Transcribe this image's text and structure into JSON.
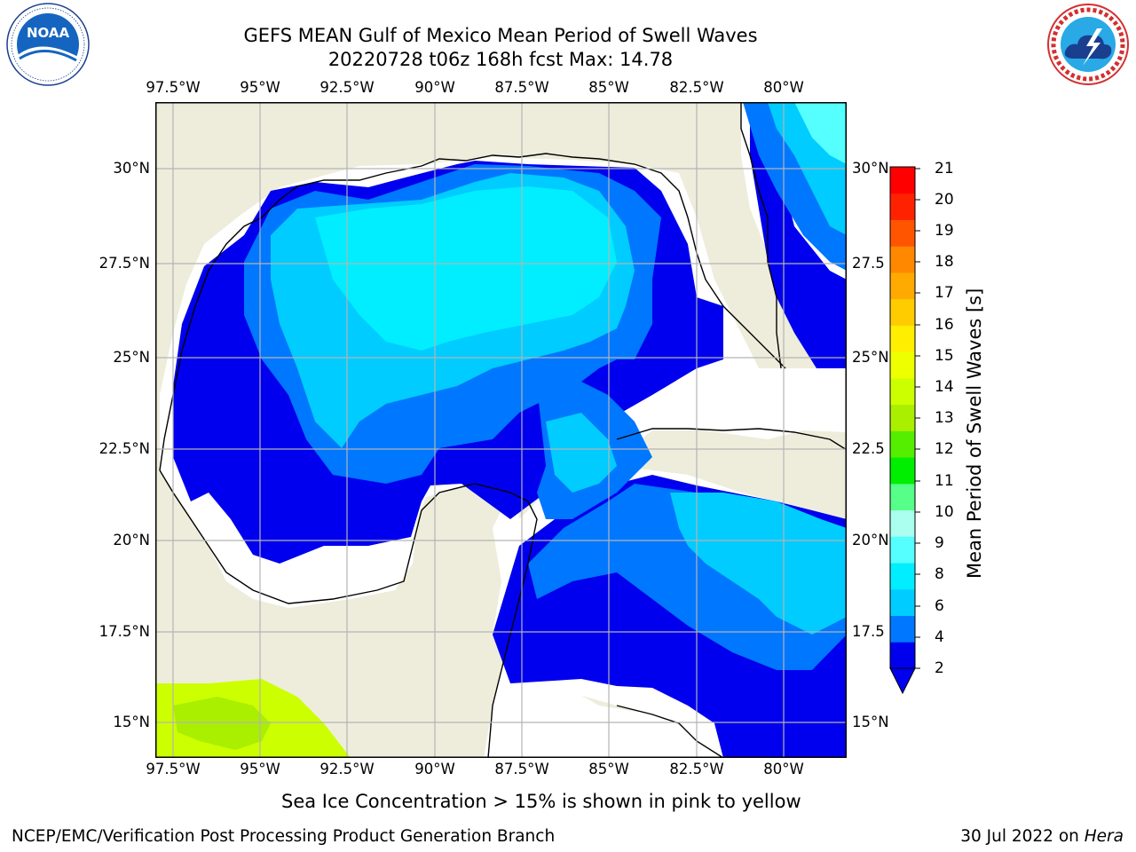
{
  "header": {
    "title_line1": "GEFS MEAN Gulf of Mexico Mean Period of Swell Waves",
    "title_line2": "20220728 t06z 168h fcst   Max: 14.78"
  },
  "logos": {
    "left": {
      "name": "NOAA",
      "ring_text": "NATIONAL OCEANIC AND ATMOSPHERIC ADMINISTRATION · U.S. DEPARTMENT OF COMMERCE"
    },
    "right": {
      "ring_text_top": "NATIONAL WEATHER SERVICE"
    }
  },
  "map": {
    "lon_ticks": [
      "97.5°W",
      "95°W",
      "92.5°W",
      "90°W",
      "87.5°W",
      "85°W",
      "82.5°W",
      "80°W"
    ],
    "lat_ticks_left": [
      "30°N",
      "27.5°N",
      "25°N",
      "22.5°N",
      "20°N",
      "17.5°N",
      "15°N"
    ],
    "lat_ticks_right": [
      "30°N",
      "27.5",
      "25°N",
      "22.5",
      "20°N",
      "17.5",
      "15°N"
    ],
    "colors": {
      "land": "#eeeddc",
      "ocean_missing": "#ffffff",
      "grid": "#b4b4b4"
    }
  },
  "colorbar": {
    "title": "Mean Period of Swell Waves [s]",
    "labels": [
      "2",
      "4",
      "6",
      "8",
      "9",
      "10",
      "11",
      "12",
      "13",
      "14",
      "15",
      "16",
      "17",
      "18",
      "19",
      "20",
      "21"
    ],
    "colors": [
      "#0000ee",
      "#0077ff",
      "#00ccff",
      "#00eeff",
      "#55ffff",
      "#aaffee",
      "#55ff88",
      "#00ee00",
      "#55ee00",
      "#aaee00",
      "#ccff00",
      "#eeff00",
      "#ffee00",
      "#ffcc00",
      "#ffaa00",
      "#ff8800",
      "#ff5500",
      "#ff2200",
      "#ff0000"
    ]
  },
  "caption": "Sea Ice Concentration > 15% is shown in pink to yellow",
  "footer": {
    "left": "NCEP/EMC/Verification Post Processing Product Generation Branch",
    "right_prefix": "30 Jul 2022 on ",
    "right_host": "Hera"
  }
}
